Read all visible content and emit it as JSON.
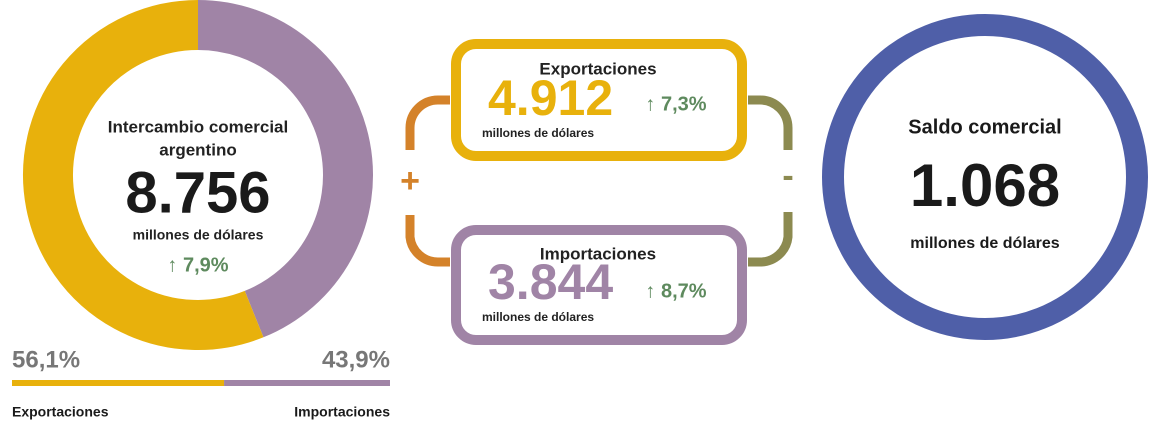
{
  "donut": {
    "title_line1": "Intercambio comercial",
    "title_line2": "argentino",
    "total": "8.756",
    "unit": "millones de dólares",
    "change": "↑ 7,9%",
    "shares": [
      {
        "name": "Exportaciones",
        "value": 56.1,
        "label": "56,1%",
        "color": "#e8b10c"
      },
      {
        "name": "Importaciones",
        "value": 43.9,
        "label": "43,9%",
        "color": "#a084a6"
      }
    ]
  },
  "exports": {
    "title": "Exportaciones",
    "value": "4.912",
    "unit": "millones de dólares",
    "change": "↑ 7,3%"
  },
  "imports": {
    "title": "Importaciones",
    "value": "3.844",
    "unit": "millones de dólares",
    "change": "↑ 8,7%"
  },
  "plus": "+",
  "minus": "-",
  "balance": {
    "title": "Saldo comercial",
    "value": "1.068",
    "unit": "millones de dólares"
  }
}
